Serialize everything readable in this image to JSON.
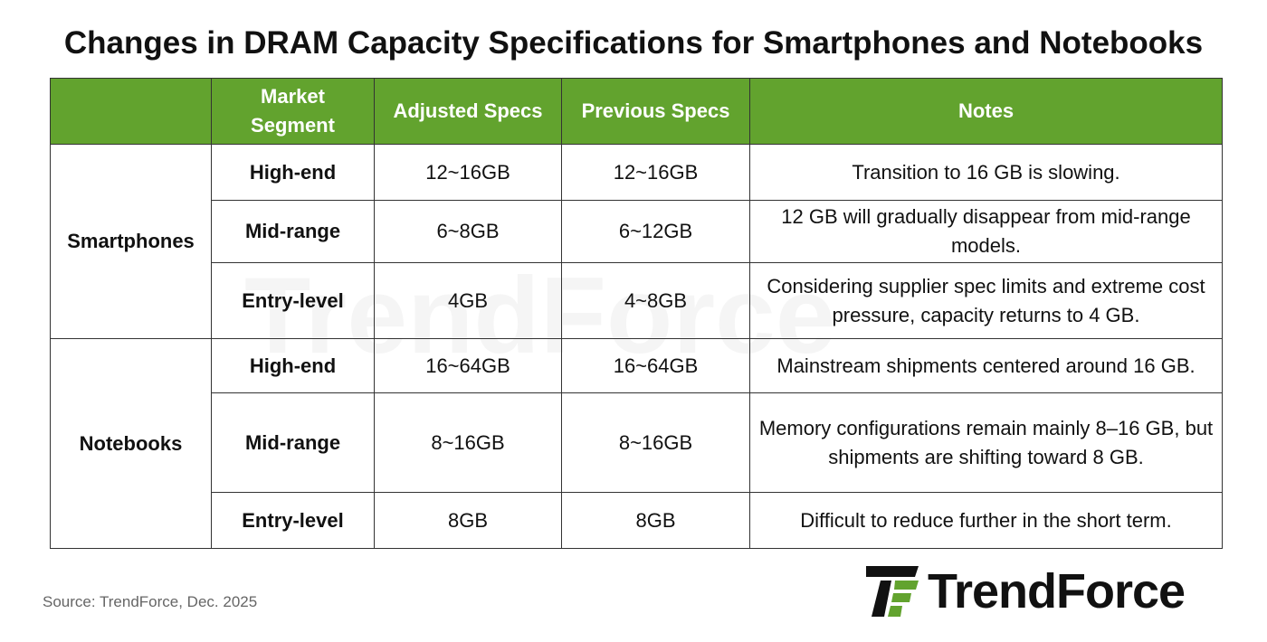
{
  "title": "Changes in DRAM Capacity Specifications for Smartphones and Notebooks",
  "table": {
    "header": [
      "Market Segment",
      "Adjusted Specs",
      "Previous Specs",
      "Notes"
    ],
    "groups": [
      {
        "name": "Smartphones",
        "rows": [
          [
            "High-end",
            "12~16GB",
            "12~16GB",
            "Transition to 16 GB is slowing."
          ],
          [
            "Mid-range",
            "6~8GB",
            "6~12GB",
            "12 GB will gradually disappear from mid-range models."
          ],
          [
            "Entry-level",
            "4GB",
            "4~8GB",
            "Considering supplier spec limits and extreme cost pressure, capacity returns to 4 GB."
          ]
        ]
      },
      {
        "name": "Notebooks",
        "rows": [
          [
            "High-end",
            "16~64GB",
            "16~64GB",
            "Mainstream shipments centered around 16 GB."
          ],
          [
            "Mid-range",
            "8~16GB",
            "8~16GB",
            "Memory configurations remain mainly 8–16 GB, but shipments are shifting toward 8 GB."
          ],
          [
            "Entry-level",
            "8GB",
            "8GB",
            "Difficult to reduce further in the short term."
          ]
        ]
      }
    ]
  },
  "watermark": "TrendForce",
  "source": "Source: TrendForce,  Dec. 2025",
  "logo": "TrendForce"
}
